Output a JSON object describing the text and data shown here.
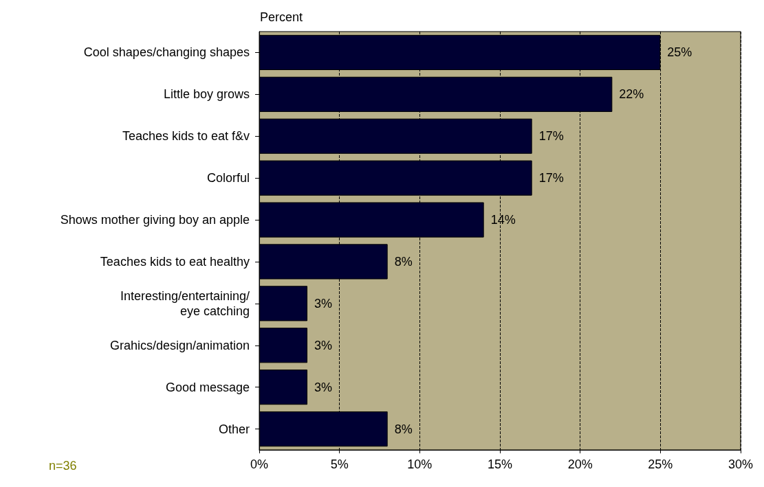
{
  "chart_data": {
    "type": "bar",
    "orientation": "horizontal",
    "xlabel": "Percent",
    "categories": [
      "Cool shapes/changing shapes",
      "Little boy grows",
      "Teaches kids to eat f&v",
      "Colorful",
      "Shows mother giving boy an apple",
      "Teaches kids to eat healthy",
      "Interesting/entertaining/\neye catching",
      "Grahics/design/animation",
      "Good message",
      "Other"
    ],
    "values": [
      25,
      22,
      17,
      17,
      14,
      8,
      3,
      3,
      3,
      8
    ],
    "value_labels": [
      "25%",
      "22%",
      "17%",
      "17%",
      "14%",
      "8%",
      "3%",
      "3%",
      "3%",
      "8%"
    ],
    "color": "#000033",
    "xlim": [
      0,
      30
    ],
    "xticks": [
      {
        "value": 0,
        "label": "0%"
      },
      {
        "value": 5,
        "label": "5%"
      },
      {
        "value": 10,
        "label": "10%"
      },
      {
        "value": 15,
        "label": "15%"
      },
      {
        "value": 20,
        "label": "20%"
      },
      {
        "value": 25,
        "label": "25%"
      },
      {
        "value": 30,
        "label": "30%"
      }
    ],
    "grid": "x",
    "annotations": [
      "n=36"
    ]
  }
}
